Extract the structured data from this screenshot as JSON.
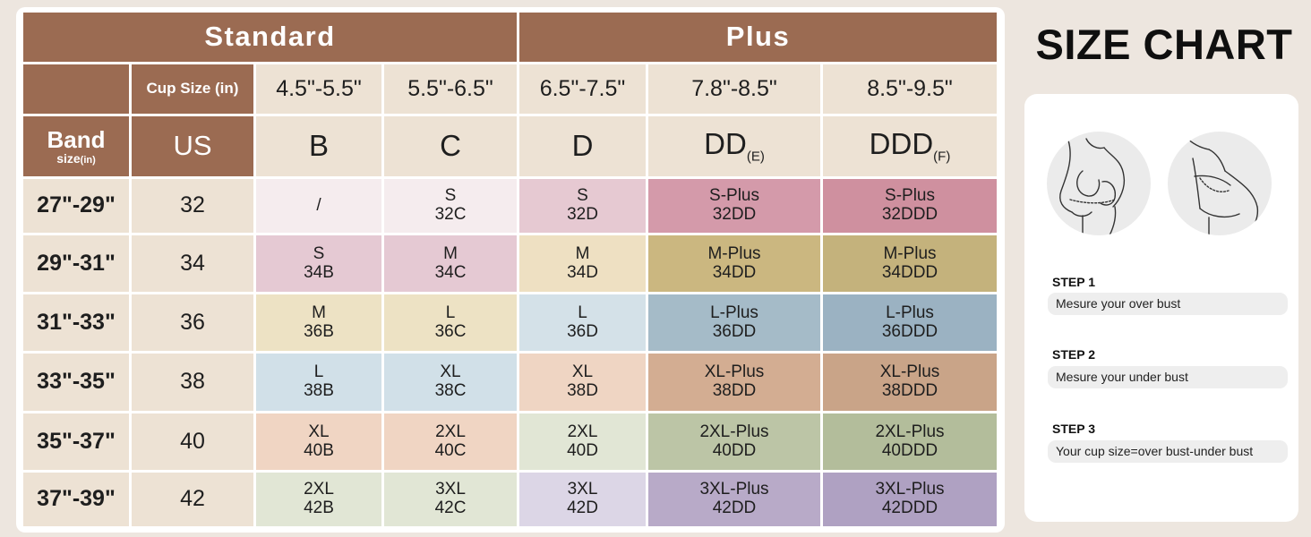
{
  "chart_title": "SIZE CHART",
  "groups": {
    "standard": "Standard",
    "plus": "Plus"
  },
  "header": {
    "cup_size_label": "Cup Size (in)",
    "band_label": "Band",
    "band_sub": "size",
    "band_unit": "(in)",
    "us_label": "US"
  },
  "cup_ranges": [
    "4.5\"-5.5\"",
    "5.5\"-6.5\"",
    "6.5\"-7.5\"",
    "7.8\"-8.5\"",
    "8.5\"-9.5\""
  ],
  "cup_letters": [
    {
      "main": "B",
      "sub": ""
    },
    {
      "main": "C",
      "sub": ""
    },
    {
      "main": "D",
      "sub": ""
    },
    {
      "main": "DD",
      "sub": "(E)"
    },
    {
      "main": "DDD",
      "sub": "(F)"
    }
  ],
  "rows": [
    {
      "band": "27\"-29\"",
      "us": "32",
      "cells": [
        {
          "size": "/",
          "code": ""
        },
        {
          "size": "S",
          "code": "32C"
        },
        {
          "size": "S",
          "code": "32D"
        },
        {
          "size": "S-Plus",
          "code": "32DD"
        },
        {
          "size": "S-Plus",
          "code": "32DDD"
        }
      ]
    },
    {
      "band": "29\"-31\"",
      "us": "34",
      "cells": [
        {
          "size": "S",
          "code": "34B"
        },
        {
          "size": "M",
          "code": "34C"
        },
        {
          "size": "M",
          "code": "34D"
        },
        {
          "size": "M-Plus",
          "code": "34DD"
        },
        {
          "size": "M-Plus",
          "code": "34DDD"
        }
      ]
    },
    {
      "band": "31\"-33\"",
      "us": "36",
      "cells": [
        {
          "size": "M",
          "code": "36B"
        },
        {
          "size": "L",
          "code": "36C"
        },
        {
          "size": "L",
          "code": "36D"
        },
        {
          "size": "L-Plus",
          "code": "36DD"
        },
        {
          "size": "L-Plus",
          "code": "36DDD"
        }
      ]
    },
    {
      "band": "33\"-35\"",
      "us": "38",
      "cells": [
        {
          "size": "L",
          "code": "38B"
        },
        {
          "size": "XL",
          "code": "38C"
        },
        {
          "size": "XL",
          "code": "38D"
        },
        {
          "size": "XL-Plus",
          "code": "38DD"
        },
        {
          "size": "XL-Plus",
          "code": "38DDD"
        }
      ]
    },
    {
      "band": "35\"-37\"",
      "us": "40",
      "cells": [
        {
          "size": "XL",
          "code": "40B"
        },
        {
          "size": "2XL",
          "code": "40C"
        },
        {
          "size": "2XL",
          "code": "40D"
        },
        {
          "size": "2XL-Plus",
          "code": "40DD"
        },
        {
          "size": "2XL-Plus",
          "code": "40DDD"
        }
      ]
    },
    {
      "band": "37\"-39\"",
      "us": "42",
      "cells": [
        {
          "size": "2XL",
          "code": "42B"
        },
        {
          "size": "3XL",
          "code": "42C"
        },
        {
          "size": "3XL",
          "code": "42D"
        },
        {
          "size": "3XL-Plus",
          "code": "42DD"
        },
        {
          "size": "3XL-Plus",
          "code": "42DDD"
        }
      ]
    }
  ],
  "colors": {
    "header_brown": "#9b6b52",
    "header_beige": "#ede2d4",
    "page_bg": "#ede6df",
    "cells": [
      [
        "#f5ecee",
        "#f5ecee",
        "#e6c9d2",
        "#d49aaa",
        "#cf909f"
      ],
      [
        "#e5c9d3",
        "#e5c9d3",
        "#eee0c2",
        "#cbb780",
        "#c4b27c"
      ],
      [
        "#ede2c4",
        "#ede2c4",
        "#d4e1e8",
        "#a5bbc8",
        "#9bb2c2"
      ],
      [
        "#d1e0e8",
        "#d1e0e8",
        "#efd5c3",
        "#d3ad92",
        "#c9a488"
      ],
      [
        "#f0d5c3",
        "#f0d5c3",
        "#e1e6d5",
        "#bcc5a6",
        "#b3bd9b"
      ],
      [
        "#e1e6d5",
        "#e1e6d5",
        "#dcd6e6",
        "#b8aac8",
        "#afa1c2"
      ]
    ]
  },
  "steps": [
    {
      "label": "STEP 1",
      "text": "Mesure your over bust"
    },
    {
      "label": "STEP 2",
      "text": "Mesure your under bust"
    },
    {
      "label": "STEP 3",
      "text": "Your cup size=over bust-under bust"
    }
  ],
  "icons": [
    "over-bust-measure-illustration",
    "under-bust-measure-illustration"
  ]
}
